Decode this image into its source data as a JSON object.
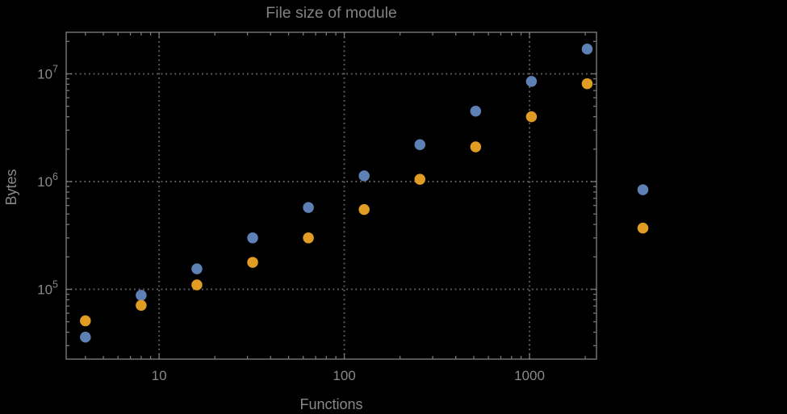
{
  "chart_data": {
    "type": "scatter",
    "title": "File size of module",
    "xlabel": "Functions",
    "ylabel": "Bytes",
    "x_scale": "log",
    "y_scale": "log",
    "xlim": [
      3.15,
      2300
    ],
    "ylim": [
      22500,
      24300000
    ],
    "grid": "dotted at major decades, frame on all four sides, inward log minor ticks",
    "legend_position": "none",
    "x_major_ticks": [
      10,
      100,
      1000
    ],
    "x_major_tick_labels": [
      "10",
      "100",
      "1000"
    ],
    "y_major_ticks": [
      100000,
      1000000,
      10000000
    ],
    "y_major_tick_base": "10",
    "y_major_tick_exponents": [
      "5",
      "6",
      "7"
    ],
    "clipped_to_frame": false,
    "x": [
      4,
      8,
      16,
      32,
      64,
      128,
      256,
      512,
      1024,
      2048,
      4096
    ],
    "series": [
      {
        "name": "series-blue",
        "color": "#5e81b5",
        "values": [
          36000,
          88000,
          155000,
          300000,
          575000,
          1130000,
          2200000,
          4500000,
          8500000,
          17000000,
          840000
        ]
      },
      {
        "name": "series-orange",
        "color": "#e19c24",
        "values": [
          51000,
          71000,
          110000,
          178000,
          300000,
          550000,
          1050000,
          2100000,
          4000000,
          8100000,
          370000
        ]
      }
    ],
    "marker": "filled-circle",
    "marker_diameter_px": 13.5
  },
  "colors": {
    "background": "#000000",
    "frame": "#787878",
    "grid": "#5e5e5e",
    "tick_label": "#888888",
    "title": "#828282",
    "axis_label": "#888888"
  }
}
